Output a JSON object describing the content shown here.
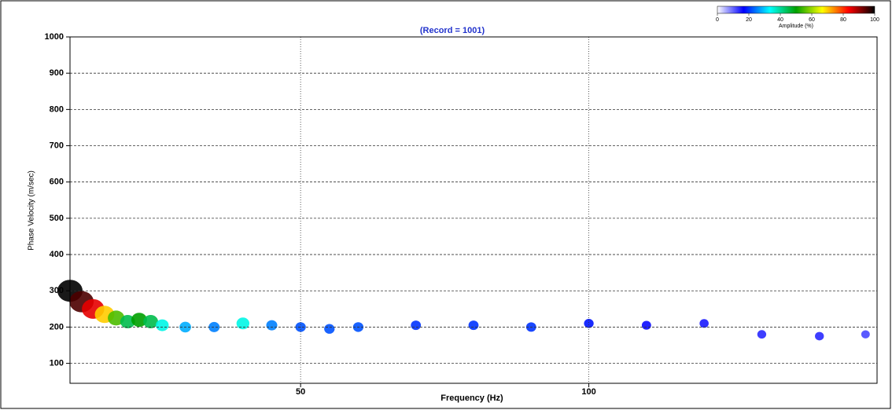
{
  "chart_data": {
    "type": "dispersion",
    "title": "(Record = 1001)",
    "x_label": "Frequency (Hz)",
    "y_label": "Phase Velocity (m/sec)",
    "xlim": [
      10,
      150
    ],
    "ylim": [
      45,
      1000
    ],
    "xticks": [
      50,
      100
    ],
    "yticks": [
      100,
      200,
      300,
      400,
      500,
      600,
      700,
      800,
      900,
      1000
    ],
    "grid": true,
    "x": [
      10,
      12,
      14,
      16,
      18,
      20,
      22,
      24,
      26,
      30,
      35,
      40,
      45,
      50,
      55,
      60,
      70,
      80,
      90,
      100,
      110,
      120,
      130,
      140,
      148
    ],
    "values": [
      300,
      270,
      250,
      235,
      225,
      215,
      220,
      215,
      205,
      200,
      200,
      210,
      205,
      200,
      195,
      200,
      205,
      205,
      200,
      210,
      205,
      210,
      180,
      175,
      180
    ],
    "amplitude": [
      100,
      95,
      85,
      70,
      55,
      45,
      50,
      45,
      35,
      28,
      25,
      35,
      25,
      22,
      22,
      22,
      20,
      20,
      20,
      18,
      16,
      15,
      14,
      14,
      12
    ],
    "colorbar": {
      "label": "Amplitude (%)",
      "ticks": [
        0,
        20,
        40,
        60,
        80,
        100
      ],
      "colors": [
        "#ffffff",
        "#0000ff",
        "#00ffff",
        "#00a000",
        "#ffff00",
        "#ff0000",
        "#000000"
      ]
    }
  }
}
